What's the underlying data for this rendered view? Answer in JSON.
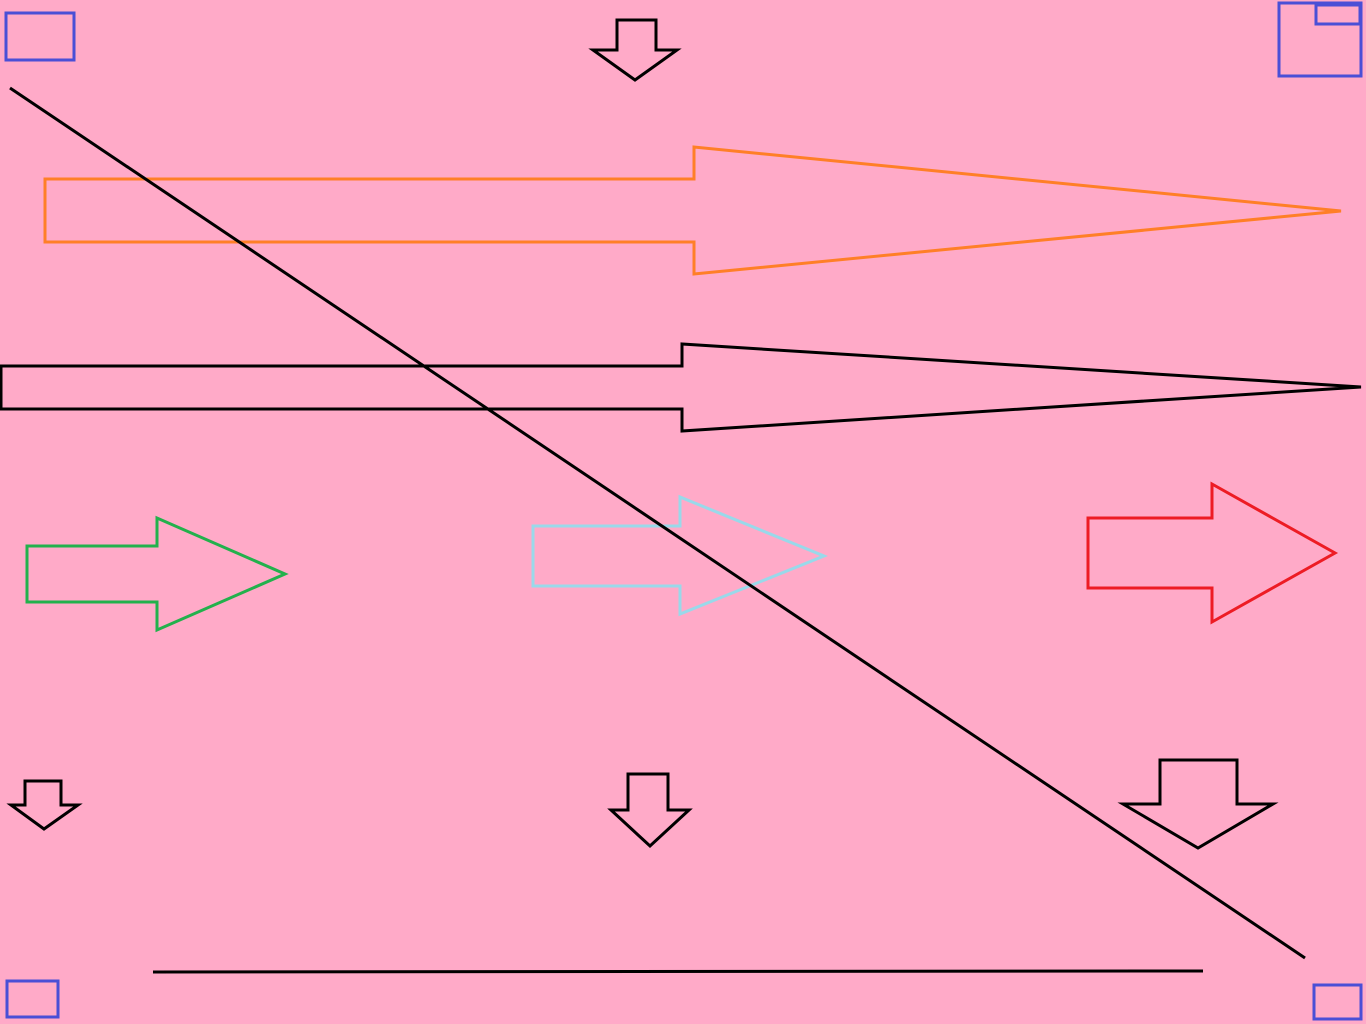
{
  "canvas": {
    "background": "#ffaac8"
  },
  "colors": {
    "corner_box": "#4a4fd6",
    "down_arrow": "#000000",
    "large_arrow_top": "#ff7f27",
    "large_arrow_middle": "#000000",
    "arrow_left": "#22b14c",
    "arrow_center": "#99d9ea",
    "arrow_right": "#ed1c24",
    "line": "#000000"
  },
  "icons": {
    "corner_top_left": "rectangle-icon",
    "corner_top_right": "nested-rectangle-icon",
    "corner_bottom_left": "rectangle-icon",
    "corner_bottom_right": "rectangle-icon",
    "arrows_right": "arrow-right-icon",
    "arrows_down": "arrow-down-icon"
  }
}
